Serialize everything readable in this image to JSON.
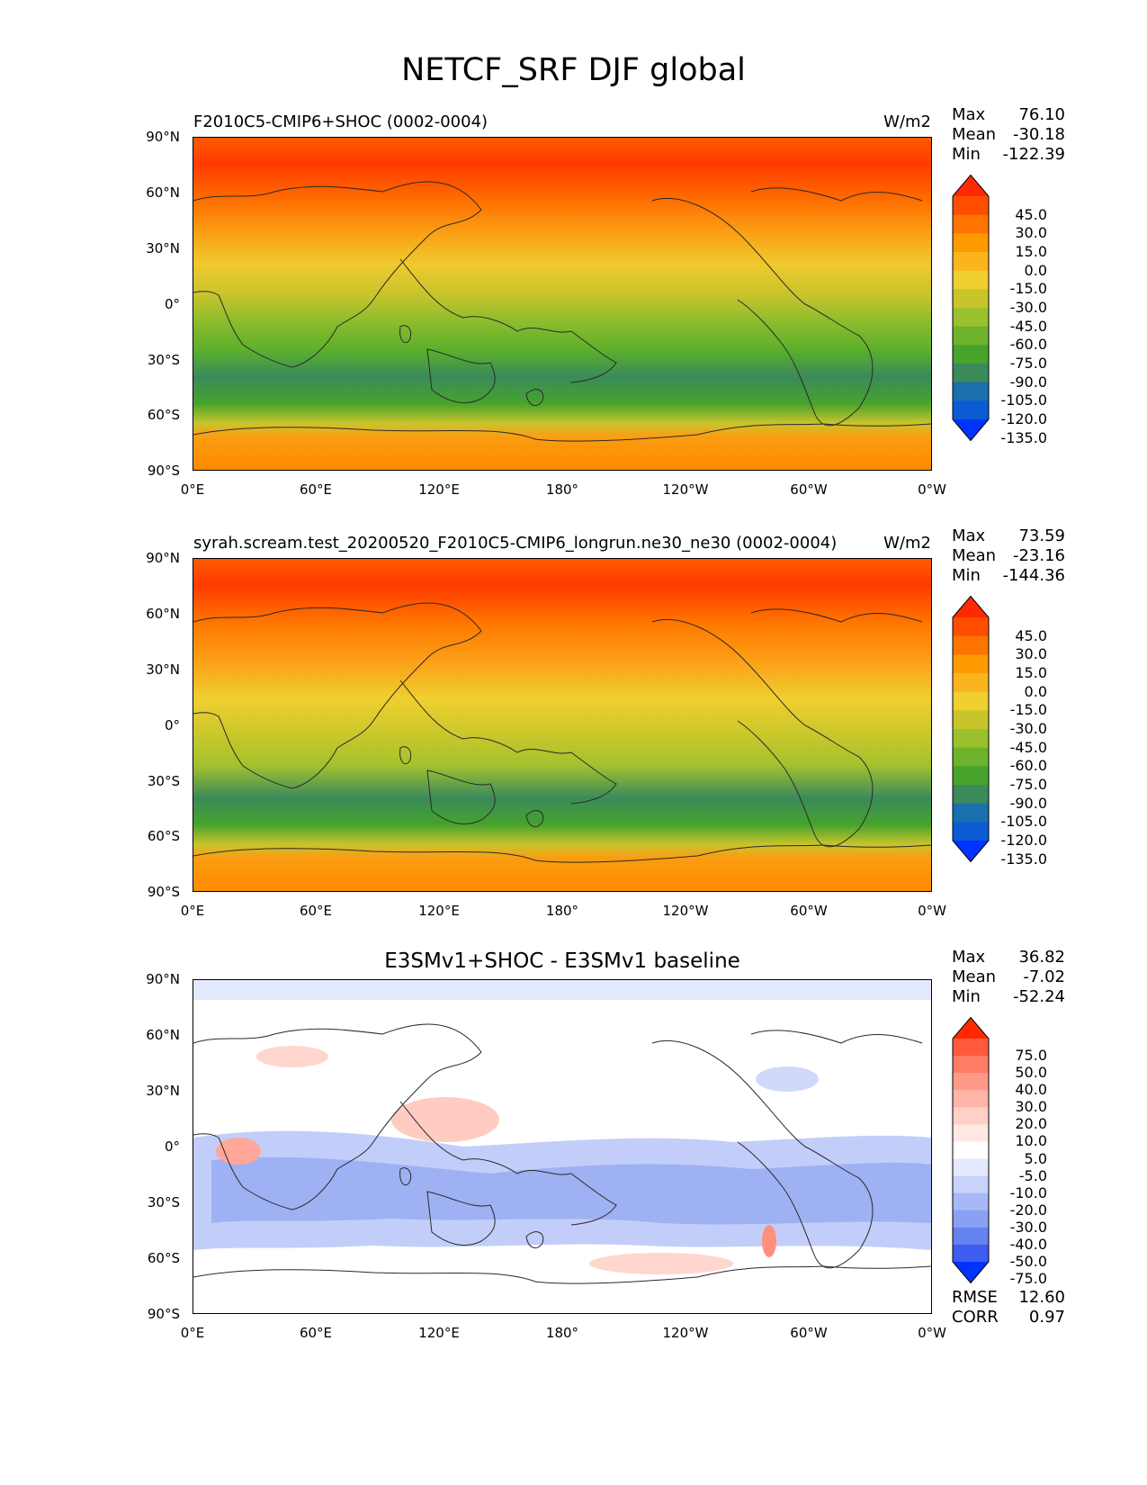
{
  "figure": {
    "title": "NETCF_SRF DJF global"
  },
  "axes": {
    "y_ticks": [
      "90°N",
      "60°N",
      "30°N",
      "0°",
      "30°S",
      "60°S",
      "90°S"
    ],
    "x_ticks": [
      "0°E",
      "60°E",
      "120°E",
      "180°",
      "120°W",
      "60°W",
      "0°W"
    ]
  },
  "panels": [
    {
      "title": "F2010C5-CMIP6+SHOC (0002-0004)",
      "units": "W/m2",
      "stats": {
        "max_label": "Max",
        "max": "76.10",
        "mean_label": "Mean",
        "mean": "-30.18",
        "min_label": "Min",
        "min": "-122.39"
      },
      "colorbar_levels": [
        "45.0",
        "30.0",
        "15.0",
        "0.0",
        "-15.0",
        "-30.0",
        "-45.0",
        "-60.0",
        "-75.0",
        "-90.0",
        "-105.0",
        "-120.0",
        "-135.0"
      ],
      "colorbar_colors": [
        "#ff2a00",
        "#ff4d00",
        "#ff7400",
        "#ff9a00",
        "#fbb41e",
        "#f0cf2e",
        "#c9c42c",
        "#9ac12d",
        "#6db32c",
        "#46a32c",
        "#3a8a5a",
        "#1a6fae",
        "#0a5bd4",
        "#0033ff"
      ]
    },
    {
      "title": "syrah.scream.test_20200520_F2010C5-CMIP6_longrun.ne30_ne30 (0002-0004)",
      "units": "W/m2",
      "stats": {
        "max_label": "Max",
        "max": "73.59",
        "mean_label": "Mean",
        "mean": "-23.16",
        "min_label": "Min",
        "min": "-144.36"
      },
      "colorbar_levels": [
        "45.0",
        "30.0",
        "15.0",
        "0.0",
        "-15.0",
        "-30.0",
        "-45.0",
        "-60.0",
        "-75.0",
        "-90.0",
        "-105.0",
        "-120.0",
        "-135.0"
      ],
      "colorbar_colors": [
        "#ff2a00",
        "#ff4d00",
        "#ff7400",
        "#ff9a00",
        "#fbb41e",
        "#f0cf2e",
        "#c9c42c",
        "#9ac12d",
        "#6db32c",
        "#46a32c",
        "#3a8a5a",
        "#1a6fae",
        "#0a5bd4",
        "#0033ff"
      ]
    },
    {
      "title": "E3SMv1+SHOC - E3SMv1 baseline",
      "stats": {
        "max_label": "Max",
        "max": "36.82",
        "mean_label": "Mean",
        "mean": "-7.02",
        "min_label": "Min",
        "min": "-52.24"
      },
      "metrics": {
        "rmse_label": "RMSE",
        "rmse": "12.60",
        "corr_label": "CORR",
        "corr": "0.97"
      },
      "colorbar_levels": [
        "75.0",
        "50.0",
        "40.0",
        "30.0",
        "20.0",
        "10.0",
        "5.0",
        "-5.0",
        "-10.0",
        "-20.0",
        "-30.0",
        "-40.0",
        "-50.0",
        "-75.0"
      ],
      "colorbar_colors": [
        "#ff2a00",
        "#ff5a3c",
        "#ff7d66",
        "#ff9a88",
        "#ffb6a8",
        "#ffd0c6",
        "#ffe8e2",
        "#ffffff",
        "#e4e9ff",
        "#c8d2fb",
        "#a8b8f6",
        "#8aa0f2",
        "#6582ee",
        "#3d5cf0",
        "#0033ff"
      ]
    }
  ]
}
